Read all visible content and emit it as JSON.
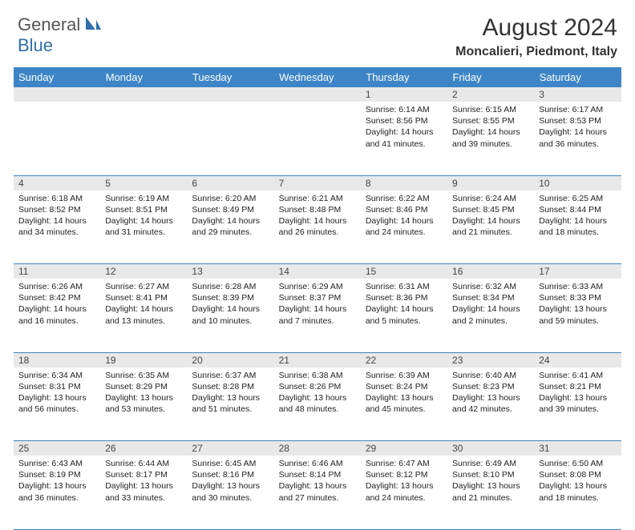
{
  "logo": {
    "part1": "General",
    "part2": "Blue"
  },
  "title": "August 2024",
  "location": "Moncalieri, Piedmont, Italy",
  "colors": {
    "header_bg": "#3d85c6",
    "header_text": "#ffffff",
    "daynum_bg": "#e8e8e8",
    "border": "#3d85c6",
    "logo_gray": "#555555",
    "logo_blue": "#2f6ea8"
  },
  "day_headers": [
    "Sunday",
    "Monday",
    "Tuesday",
    "Wednesday",
    "Thursday",
    "Friday",
    "Saturday"
  ],
  "weeks": [
    [
      null,
      null,
      null,
      null,
      {
        "n": "1",
        "sr": "Sunrise: 6:14 AM",
        "ss": "Sunset: 8:56 PM",
        "d1": "Daylight: 14 hours",
        "d2": "and 41 minutes."
      },
      {
        "n": "2",
        "sr": "Sunrise: 6:15 AM",
        "ss": "Sunset: 8:55 PM",
        "d1": "Daylight: 14 hours",
        "d2": "and 39 minutes."
      },
      {
        "n": "3",
        "sr": "Sunrise: 6:17 AM",
        "ss": "Sunset: 8:53 PM",
        "d1": "Daylight: 14 hours",
        "d2": "and 36 minutes."
      }
    ],
    [
      {
        "n": "4",
        "sr": "Sunrise: 6:18 AM",
        "ss": "Sunset: 8:52 PM",
        "d1": "Daylight: 14 hours",
        "d2": "and 34 minutes."
      },
      {
        "n": "5",
        "sr": "Sunrise: 6:19 AM",
        "ss": "Sunset: 8:51 PM",
        "d1": "Daylight: 14 hours",
        "d2": "and 31 minutes."
      },
      {
        "n": "6",
        "sr": "Sunrise: 6:20 AM",
        "ss": "Sunset: 8:49 PM",
        "d1": "Daylight: 14 hours",
        "d2": "and 29 minutes."
      },
      {
        "n": "7",
        "sr": "Sunrise: 6:21 AM",
        "ss": "Sunset: 8:48 PM",
        "d1": "Daylight: 14 hours",
        "d2": "and 26 minutes."
      },
      {
        "n": "8",
        "sr": "Sunrise: 6:22 AM",
        "ss": "Sunset: 8:46 PM",
        "d1": "Daylight: 14 hours",
        "d2": "and 24 minutes."
      },
      {
        "n": "9",
        "sr": "Sunrise: 6:24 AM",
        "ss": "Sunset: 8:45 PM",
        "d1": "Daylight: 14 hours",
        "d2": "and 21 minutes."
      },
      {
        "n": "10",
        "sr": "Sunrise: 6:25 AM",
        "ss": "Sunset: 8:44 PM",
        "d1": "Daylight: 14 hours",
        "d2": "and 18 minutes."
      }
    ],
    [
      {
        "n": "11",
        "sr": "Sunrise: 6:26 AM",
        "ss": "Sunset: 8:42 PM",
        "d1": "Daylight: 14 hours",
        "d2": "and 16 minutes."
      },
      {
        "n": "12",
        "sr": "Sunrise: 6:27 AM",
        "ss": "Sunset: 8:41 PM",
        "d1": "Daylight: 14 hours",
        "d2": "and 13 minutes."
      },
      {
        "n": "13",
        "sr": "Sunrise: 6:28 AM",
        "ss": "Sunset: 8:39 PM",
        "d1": "Daylight: 14 hours",
        "d2": "and 10 minutes."
      },
      {
        "n": "14",
        "sr": "Sunrise: 6:29 AM",
        "ss": "Sunset: 8:37 PM",
        "d1": "Daylight: 14 hours",
        "d2": "and 7 minutes."
      },
      {
        "n": "15",
        "sr": "Sunrise: 6:31 AM",
        "ss": "Sunset: 8:36 PM",
        "d1": "Daylight: 14 hours",
        "d2": "and 5 minutes."
      },
      {
        "n": "16",
        "sr": "Sunrise: 6:32 AM",
        "ss": "Sunset: 8:34 PM",
        "d1": "Daylight: 14 hours",
        "d2": "and 2 minutes."
      },
      {
        "n": "17",
        "sr": "Sunrise: 6:33 AM",
        "ss": "Sunset: 8:33 PM",
        "d1": "Daylight: 13 hours",
        "d2": "and 59 minutes."
      }
    ],
    [
      {
        "n": "18",
        "sr": "Sunrise: 6:34 AM",
        "ss": "Sunset: 8:31 PM",
        "d1": "Daylight: 13 hours",
        "d2": "and 56 minutes."
      },
      {
        "n": "19",
        "sr": "Sunrise: 6:35 AM",
        "ss": "Sunset: 8:29 PM",
        "d1": "Daylight: 13 hours",
        "d2": "and 53 minutes."
      },
      {
        "n": "20",
        "sr": "Sunrise: 6:37 AM",
        "ss": "Sunset: 8:28 PM",
        "d1": "Daylight: 13 hours",
        "d2": "and 51 minutes."
      },
      {
        "n": "21",
        "sr": "Sunrise: 6:38 AM",
        "ss": "Sunset: 8:26 PM",
        "d1": "Daylight: 13 hours",
        "d2": "and 48 minutes."
      },
      {
        "n": "22",
        "sr": "Sunrise: 6:39 AM",
        "ss": "Sunset: 8:24 PM",
        "d1": "Daylight: 13 hours",
        "d2": "and 45 minutes."
      },
      {
        "n": "23",
        "sr": "Sunrise: 6:40 AM",
        "ss": "Sunset: 8:23 PM",
        "d1": "Daylight: 13 hours",
        "d2": "and 42 minutes."
      },
      {
        "n": "24",
        "sr": "Sunrise: 6:41 AM",
        "ss": "Sunset: 8:21 PM",
        "d1": "Daylight: 13 hours",
        "d2": "and 39 minutes."
      }
    ],
    [
      {
        "n": "25",
        "sr": "Sunrise: 6:43 AM",
        "ss": "Sunset: 8:19 PM",
        "d1": "Daylight: 13 hours",
        "d2": "and 36 minutes."
      },
      {
        "n": "26",
        "sr": "Sunrise: 6:44 AM",
        "ss": "Sunset: 8:17 PM",
        "d1": "Daylight: 13 hours",
        "d2": "and 33 minutes."
      },
      {
        "n": "27",
        "sr": "Sunrise: 6:45 AM",
        "ss": "Sunset: 8:16 PM",
        "d1": "Daylight: 13 hours",
        "d2": "and 30 minutes."
      },
      {
        "n": "28",
        "sr": "Sunrise: 6:46 AM",
        "ss": "Sunset: 8:14 PM",
        "d1": "Daylight: 13 hours",
        "d2": "and 27 minutes."
      },
      {
        "n": "29",
        "sr": "Sunrise: 6:47 AM",
        "ss": "Sunset: 8:12 PM",
        "d1": "Daylight: 13 hours",
        "d2": "and 24 minutes."
      },
      {
        "n": "30",
        "sr": "Sunrise: 6:49 AM",
        "ss": "Sunset: 8:10 PM",
        "d1": "Daylight: 13 hours",
        "d2": "and 21 minutes."
      },
      {
        "n": "31",
        "sr": "Sunrise: 6:50 AM",
        "ss": "Sunset: 8:08 PM",
        "d1": "Daylight: 13 hours",
        "d2": "and 18 minutes."
      }
    ]
  ]
}
